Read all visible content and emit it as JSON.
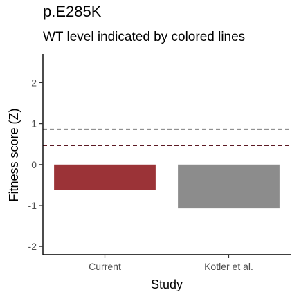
{
  "chart_data": {
    "type": "bar",
    "title": "p.E285K",
    "subtitle": "WT level indicated by colored lines",
    "xlabel": "Study",
    "ylabel": "Fitness score (Z)",
    "categories": [
      "Current",
      "Kotler et al."
    ],
    "values": [
      -0.62,
      -1.07
    ],
    "bar_colors": [
      "#9b3337",
      "#8c8c8c"
    ],
    "ylim": [
      -2.2,
      2.7
    ],
    "yticks": [
      -2,
      -1,
      0,
      1,
      2
    ],
    "ytick_labels": [
      "-2",
      "-1",
      "0",
      "1",
      "2"
    ],
    "wt_lines": [
      {
        "value": 0.86,
        "color": "#808080"
      },
      {
        "value": 0.47,
        "color": "#5c1a24"
      }
    ],
    "grid": false,
    "legend": "none"
  }
}
